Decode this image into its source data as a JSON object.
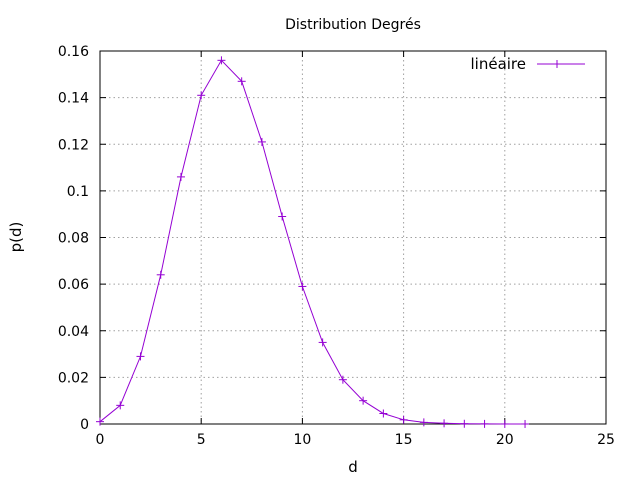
{
  "chart_data": {
    "type": "line",
    "title": "Distribution Degrés",
    "xlabel": "d",
    "ylabel": "p(d)",
    "xlim": [
      0,
      25
    ],
    "ylim": [
      0,
      0.16
    ],
    "xticks": [
      0,
      5,
      10,
      15,
      20,
      25
    ],
    "yticks": [
      0,
      0.02,
      0.04,
      0.06,
      0.08,
      0.1,
      0.12,
      0.14,
      0.16
    ],
    "xtick_labels": [
      "0",
      "5",
      "10",
      "15",
      "20",
      "25"
    ],
    "ytick_labels": [
      "0",
      "0.02",
      "0.04",
      "0.06",
      "0.08",
      "0.1",
      "0.12",
      "0.14",
      "0.16"
    ],
    "grid": true,
    "legend_position": "top-right",
    "series": [
      {
        "name": "linéaire",
        "color": "#9400d3",
        "marker": "plus",
        "x": [
          0,
          1,
          2,
          3,
          4,
          5,
          6,
          7,
          8,
          9,
          10,
          11,
          12,
          13,
          14,
          15,
          16,
          17,
          18,
          19,
          20,
          21
        ],
        "y": [
          0.001,
          0.008,
          0.029,
          0.064,
          0.106,
          0.141,
          0.156,
          0.147,
          0.121,
          0.089,
          0.059,
          0.035,
          0.019,
          0.01,
          0.0045,
          0.0018,
          0.0007,
          0.0003,
          0.0001,
          5e-05,
          2e-05,
          1e-05
        ]
      }
    ]
  }
}
